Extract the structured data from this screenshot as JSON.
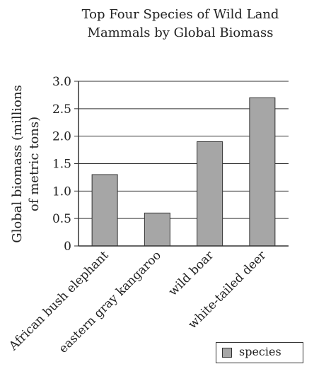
{
  "chart_data": {
    "type": "bar",
    "title_lines": [
      "Top Four Species of Wild Land",
      "Mammals by Global Biomass"
    ],
    "ylabel_lines": [
      "Global biomass (millions",
      "of metric tons)"
    ],
    "xlabel": "",
    "categories": [
      "African bush elephant",
      "eastern gray kangaroo",
      "wild boar",
      "white-tailed deer"
    ],
    "series": [
      {
        "name": "species",
        "values": [
          1.3,
          0.6,
          1.9,
          2.7
        ]
      }
    ],
    "ylim": [
      0,
      3.0
    ],
    "yticks": [
      "0",
      "0.5",
      "1.0",
      "1.5",
      "2.0",
      "2.5",
      "3.0"
    ],
    "grid": true,
    "legend_position": "bottom-right",
    "colors": {
      "bar": "#a6a6a6",
      "bar_stroke": "#333333",
      "grid": "#333333"
    }
  }
}
